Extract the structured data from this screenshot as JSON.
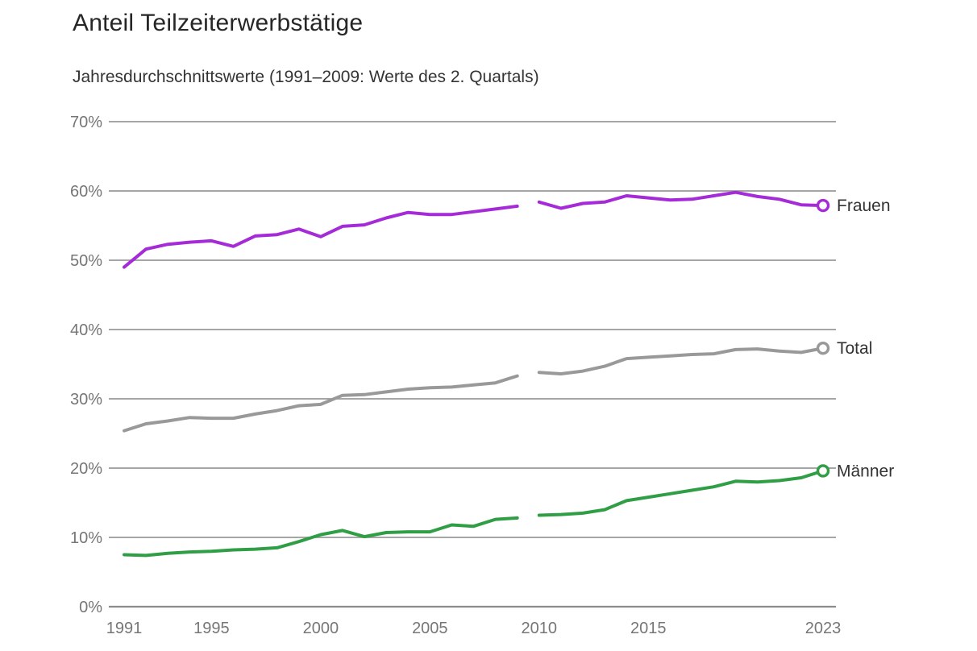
{
  "header": {
    "title": "Anteil Teilzeiterwerbstätige",
    "subtitle": "Jahresdurchschnittswerte (1991–2009: Werte des 2. Quartals)"
  },
  "chart_data": {
    "type": "line",
    "title": "Anteil Teilzeiterwerbstätige",
    "subtitle": "Jahresdurchschnittswerte (1991–2009: Werte des 2. Quartals)",
    "xlabel": "",
    "ylabel": "",
    "x_range": [
      1991,
      2023
    ],
    "ylim": [
      0,
      70
    ],
    "grid": true,
    "gap_after_year": 2009,
    "legend_position": "end-of-line-labels",
    "yticks": [
      {
        "value": 0,
        "label": "0%"
      },
      {
        "value": 10,
        "label": "10%"
      },
      {
        "value": 20,
        "label": "20%"
      },
      {
        "value": 30,
        "label": "30%"
      },
      {
        "value": 40,
        "label": "40%"
      },
      {
        "value": 50,
        "label": "50%"
      },
      {
        "value": 60,
        "label": "60%"
      },
      {
        "value": 70,
        "label": "70%"
      }
    ],
    "xticks": [
      {
        "value": 1991,
        "label": "1991"
      },
      {
        "value": 1995,
        "label": "1995"
      },
      {
        "value": 2000,
        "label": "2000"
      },
      {
        "value": 2005,
        "label": "2005"
      },
      {
        "value": 2010,
        "label": "2010"
      },
      {
        "value": 2015,
        "label": "2015"
      },
      {
        "value": 2023,
        "label": "2023"
      }
    ],
    "years": [
      1991,
      1992,
      1993,
      1994,
      1995,
      1996,
      1997,
      1998,
      1999,
      2000,
      2001,
      2002,
      2003,
      2004,
      2005,
      2006,
      2007,
      2008,
      2009,
      2010,
      2011,
      2012,
      2013,
      2014,
      2015,
      2016,
      2017,
      2018,
      2019,
      2020,
      2021,
      2022,
      2023
    ],
    "series": [
      {
        "name": "Frauen",
        "color": "#a62bd8",
        "values": [
          49.0,
          51.6,
          52.3,
          52.6,
          52.8,
          52.0,
          53.5,
          53.7,
          54.5,
          53.4,
          54.9,
          55.1,
          56.1,
          56.9,
          56.6,
          56.6,
          57.0,
          57.4,
          57.8,
          58.4,
          57.5,
          58.2,
          58.4,
          59.3,
          59.0,
          58.7,
          58.8,
          59.3,
          59.8,
          59.2,
          58.8,
          58.0,
          57.9
        ]
      },
      {
        "name": "Total",
        "color": "#999999",
        "values": [
          25.4,
          26.4,
          26.8,
          27.3,
          27.2,
          27.2,
          27.8,
          28.3,
          29.0,
          29.2,
          30.5,
          30.6,
          31.0,
          31.4,
          31.6,
          31.7,
          32.0,
          32.3,
          33.3,
          33.8,
          33.6,
          34.0,
          34.7,
          35.8,
          36.0,
          36.2,
          36.4,
          36.5,
          37.1,
          37.2,
          36.9,
          36.7,
          37.3
        ]
      },
      {
        "name": "Männer",
        "color": "#2f9e45",
        "values": [
          7.5,
          7.4,
          7.7,
          7.9,
          8.0,
          8.2,
          8.3,
          8.5,
          9.4,
          10.4,
          11.0,
          10.1,
          10.7,
          10.8,
          10.8,
          11.8,
          11.6,
          12.6,
          12.8,
          13.2,
          13.3,
          13.5,
          14.0,
          15.3,
          15.8,
          16.3,
          16.8,
          17.3,
          18.1,
          18.0,
          18.2,
          18.6,
          19.6
        ]
      }
    ],
    "style": {
      "gridline_color": "#9a9a9a",
      "baseline_color": "#8c8c8c",
      "tick_label_color": "#767676",
      "series_label_color": "#333333",
      "background": "#ffffff"
    }
  }
}
